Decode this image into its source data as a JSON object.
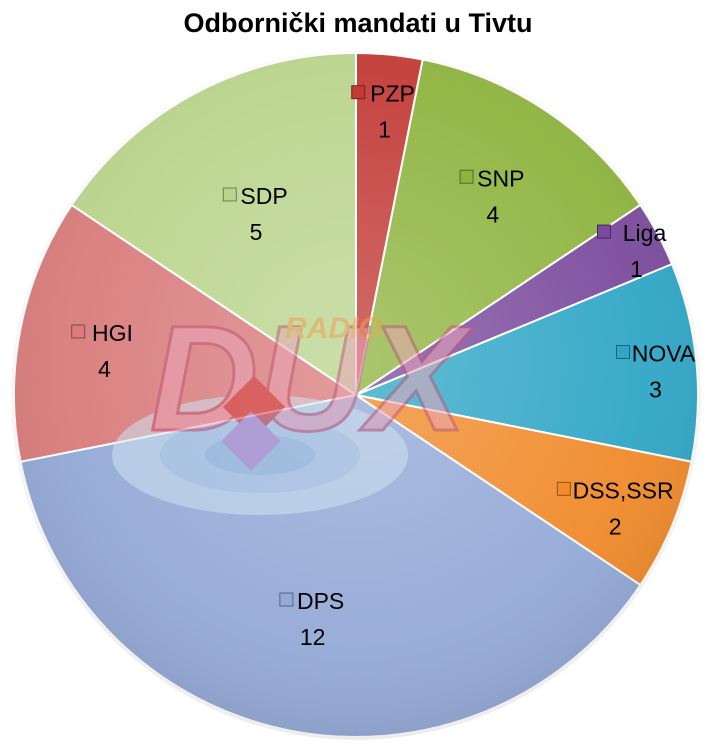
{
  "chart_data": {
    "type": "pie",
    "title": "Odbornički mandati u Tivtu",
    "start_angle_deg": 0,
    "direction": "clockwise",
    "categories": [
      "PZP",
      "SNP",
      "Liga",
      "NOVA",
      "DSS,SSR",
      "DPS",
      "HGI",
      "SDP"
    ],
    "values": [
      1,
      4,
      1,
      3,
      2,
      12,
      4,
      5
    ],
    "colors": [
      "#c23a36",
      "#8eb33e",
      "#7a4a9c",
      "#2fa6c6",
      "#f08a2a",
      "#93a9d6",
      "#d97b7b",
      "#b9d48c"
    ],
    "legend": "inside-slices"
  },
  "watermark": {
    "text": "DUX",
    "subtext": "RADIO"
  }
}
